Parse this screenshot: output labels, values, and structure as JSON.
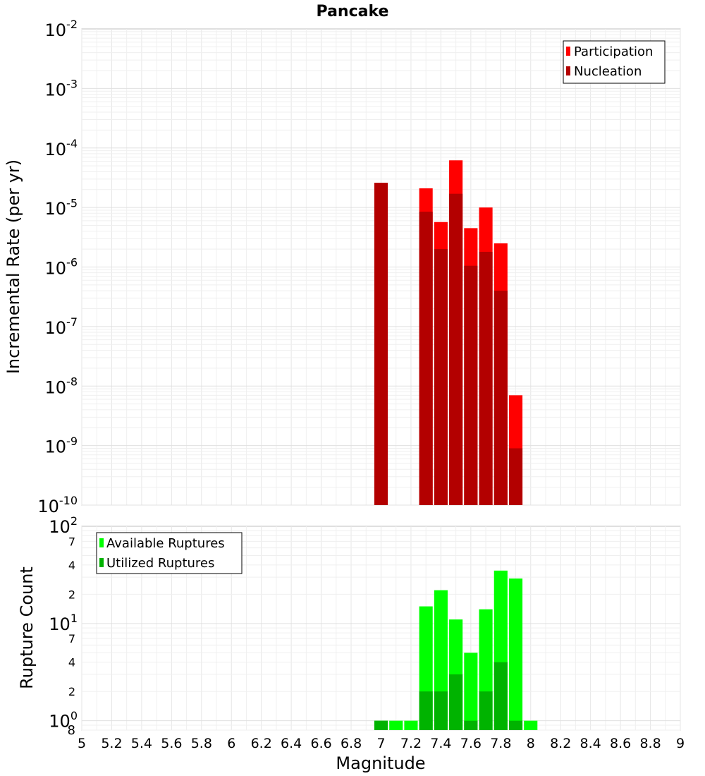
{
  "chart_data": [
    {
      "type": "bar",
      "title": "Pancake",
      "ylabel": "Incremental Rate (per yr)",
      "xlabel": "",
      "yscale": "log",
      "ylim": [
        1e-10,
        0.01
      ],
      "xlim": [
        5,
        9
      ],
      "y_ticks": [
        {
          "base": "10",
          "exp": "-10"
        },
        {
          "base": "10",
          "exp": "-9"
        },
        {
          "base": "10",
          "exp": "-8"
        },
        {
          "base": "10",
          "exp": "-7"
        },
        {
          "base": "10",
          "exp": "-6"
        },
        {
          "base": "10",
          "exp": "-5"
        },
        {
          "base": "10",
          "exp": "-4"
        },
        {
          "base": "10",
          "exp": "-3"
        },
        {
          "base": "10",
          "exp": "-2"
        }
      ],
      "legend": {
        "placement": "top-right",
        "entries": [
          {
            "label": "Participation",
            "color": "#ff0000"
          },
          {
            "label": "Nucleation",
            "color": "#b30000"
          }
        ]
      },
      "bar_width": 0.09,
      "series": [
        {
          "name": "Participation",
          "color": "#ff0000",
          "x": [
            7.0,
            7.3,
            7.4,
            7.5,
            7.6,
            7.7,
            7.8,
            7.9
          ],
          "values": [
            2.6e-05,
            2.1e-05,
            5.7e-06,
            6.2e-05,
            4.5e-06,
            1e-05,
            2.5e-06,
            7e-09
          ]
        },
        {
          "name": "Nucleation",
          "color": "#b30000",
          "x": [
            7.0,
            7.3,
            7.4,
            7.5,
            7.6,
            7.7,
            7.8,
            7.9
          ],
          "values": [
            2.6e-05,
            8.5e-06,
            2e-06,
            1.7e-05,
            1.05e-06,
            1.8e-06,
            4e-07,
            9e-10
          ]
        }
      ]
    },
    {
      "type": "bar",
      "title": "",
      "ylabel": "Rupture Count",
      "xlabel": "Magnitude",
      "yscale": "log",
      "ylim": [
        0.8,
        100
      ],
      "xlim": [
        5,
        9
      ],
      "x_ticks": [
        "5",
        "5.2",
        "5.4",
        "5.6",
        "5.8",
        "6",
        "6.2",
        "6.4",
        "6.6",
        "6.8",
        "7",
        "7.2",
        "7.4",
        "7.6",
        "7.8",
        "8",
        "8.2",
        "8.4",
        "8.6",
        "8.8",
        "9"
      ],
      "y_major_ticks": [
        {
          "base": "10",
          "exp": "0"
        },
        {
          "base": "10",
          "exp": "1"
        },
        {
          "base": "10",
          "exp": "2"
        }
      ],
      "y_minor_ticks": [
        {
          "value": 2,
          "label": "2"
        },
        {
          "value": 4,
          "label": "4"
        },
        {
          "value": 7,
          "label": "7"
        },
        {
          "value": 20,
          "label": "2"
        },
        {
          "value": 40,
          "label": "4"
        },
        {
          "value": 70,
          "label": "7"
        }
      ],
      "y_min_label": "8",
      "legend": {
        "placement": "top-left",
        "entries": [
          {
            "label": "Available Ruptures",
            "color": "#00ff00"
          },
          {
            "label": "Utilized Ruptures",
            "color": "#00b300"
          }
        ]
      },
      "bar_width": 0.09,
      "series": [
        {
          "name": "Available Ruptures",
          "color": "#00ff00",
          "x": [
            7.0,
            7.1,
            7.2,
            7.3,
            7.4,
            7.5,
            7.6,
            7.7,
            7.8,
            7.9,
            8.0
          ],
          "values": [
            1,
            1,
            1,
            15,
            22,
            11,
            5,
            14,
            35,
            29,
            1
          ]
        },
        {
          "name": "Utilized Ruptures",
          "color": "#00b300",
          "x": [
            7.0,
            7.3,
            7.4,
            7.5,
            7.6,
            7.7,
            7.8,
            7.9
          ],
          "values": [
            1,
            2,
            2,
            3,
            1,
            2,
            4,
            1
          ]
        }
      ]
    }
  ]
}
